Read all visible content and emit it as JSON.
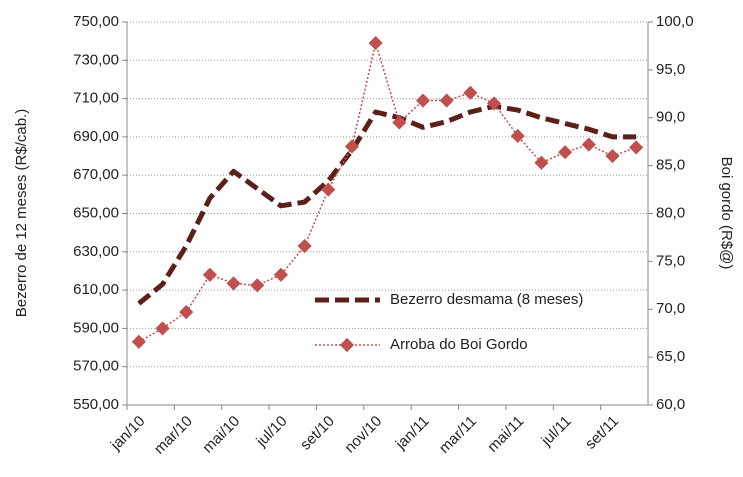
{
  "chart_data": {
    "type": "line",
    "categories": [
      "jan/10",
      null,
      "mar/10",
      null,
      "mai/10",
      null,
      "jul/10",
      null,
      "set/10",
      null,
      "nov/10",
      null,
      "jan/11",
      null,
      "mar/11",
      null,
      "mai/11",
      null,
      "jul/11",
      null,
      "set/11",
      null
    ],
    "y_label": "Bezerro de 12 meses (R$/cab.)",
    "y2_label": "Boi gordo (R$@)",
    "ylim": [
      550,
      750
    ],
    "yticks": [
      {
        "value": 550,
        "label": "550,00"
      },
      {
        "value": 570,
        "label": "570,00"
      },
      {
        "value": 590,
        "label": "590,00"
      },
      {
        "value": 610,
        "label": "610,00"
      },
      {
        "value": 630,
        "label": "630,00"
      },
      {
        "value": 650,
        "label": "650,00"
      },
      {
        "value": 670,
        "label": "670,00"
      },
      {
        "value": 690,
        "label": "690,00"
      },
      {
        "value": 710,
        "label": "710,00"
      },
      {
        "value": 730,
        "label": "730,00"
      },
      {
        "value": 750,
        "label": "750,00"
      }
    ],
    "y2lim": [
      60,
      100
    ],
    "y2ticks": [
      {
        "value": 60,
        "label": "60,0"
      },
      {
        "value": 65,
        "label": "65,0"
      },
      {
        "value": 70,
        "label": "70,0"
      },
      {
        "value": 75,
        "label": "75,0"
      },
      {
        "value": 80,
        "label": "80,0"
      },
      {
        "value": 85,
        "label": "85,0"
      },
      {
        "value": 90,
        "label": "90,0"
      },
      {
        "value": 95,
        "label": "95,0"
      },
      {
        "value": 100,
        "label": "100,0"
      }
    ],
    "grid": true,
    "series": [
      {
        "name": "Bezerro desmama (8 meses)",
        "color": "#5c1f1a",
        "style": "dashed",
        "values": [
          603,
          613,
          633,
          658,
          672,
          663,
          654,
          656,
          667,
          683,
          703,
          700,
          695,
          698,
          703,
          706,
          704,
          700,
          697,
          694,
          690,
          690
        ]
      },
      {
        "name": "Arroba do Boi Gordo",
        "color": "#c0504d",
        "style": "dotted-marker",
        "axis": "y2",
        "values": [
          66.6,
          68.0,
          69.7,
          73.6,
          72.7,
          72.5,
          73.6,
          76.6,
          82.5,
          87.0,
          97.8,
          89.5,
          91.8,
          91.8,
          92.6,
          91.5,
          88.1,
          85.3,
          86.4,
          87.2,
          86.0,
          86.9
        ]
      }
    ]
  }
}
